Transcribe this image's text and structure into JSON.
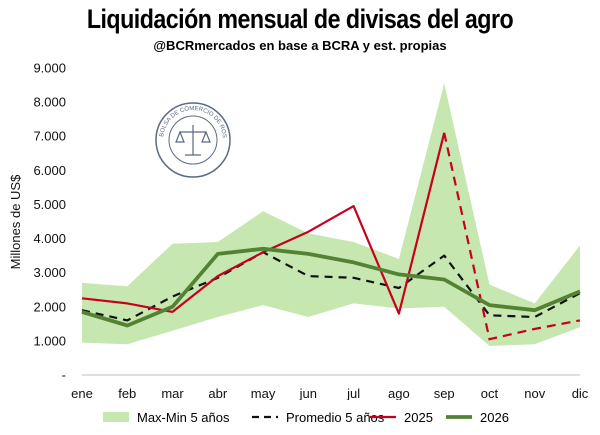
{
  "title": "Liquidación mensual de divisas del agro",
  "subtitle": "@BCRmercados  en base a BCRA y est. propias",
  "seal_text": "BOLSA DE COMERCIO DE ROSARIO",
  "colors": {
    "band": "#c6e8b0",
    "promedio": "#111111",
    "y2025": "#c8001e",
    "y2026": "#548235",
    "axis": "#bfbfbf"
  },
  "chart_data": {
    "type": "line",
    "title": "Liquidación mensual de divisas del agro",
    "subtitle": "@BCRmercados  en base a BCRA y est. propias",
    "xlabel": "",
    "ylabel": "Millones de US$",
    "ylim": [
      0,
      9000
    ],
    "yticks": [
      0,
      1000,
      2000,
      3000,
      4000,
      5000,
      6000,
      7000,
      8000,
      9000
    ],
    "ytick_labels": [
      "-",
      "1.000",
      "2.000",
      "3.000",
      "4.000",
      "5.000",
      "6.000",
      "7.000",
      "8.000",
      "9.000"
    ],
    "categories": [
      "ene",
      "feb",
      "mar",
      "abr",
      "may",
      "jun",
      "jul",
      "ago",
      "sep",
      "oct",
      "nov",
      "dic"
    ],
    "grid": false,
    "legend_position": "bottom",
    "series": [
      {
        "name": "Max-Min 5 años",
        "kind": "band",
        "max": [
          2700,
          2600,
          3850,
          3900,
          4800,
          4150,
          3900,
          3400,
          8550,
          2650,
          2100,
          3800
        ],
        "min": [
          950,
          900,
          1300,
          1700,
          2050,
          1700,
          2100,
          1950,
          2000,
          850,
          900,
          1400
        ]
      },
      {
        "name": "Promedio 5 años",
        "kind": "dashed",
        "values": [
          1900,
          1600,
          2300,
          2850,
          3600,
          2900,
          2850,
          2550,
          3500,
          1750,
          1700,
          2400
        ]
      },
      {
        "name": "2025",
        "kind": "line",
        "values": [
          2250,
          2100,
          1850,
          2900,
          3600,
          4200,
          4950,
          1800,
          7100,
          1050,
          1350,
          1600
        ]
      },
      {
        "name": "2026",
        "kind": "line",
        "values": [
          1850,
          1450,
          2000,
          3550,
          3700,
          3550,
          3300,
          2950,
          2800,
          2050,
          1900,
          2450
        ]
      }
    ]
  }
}
